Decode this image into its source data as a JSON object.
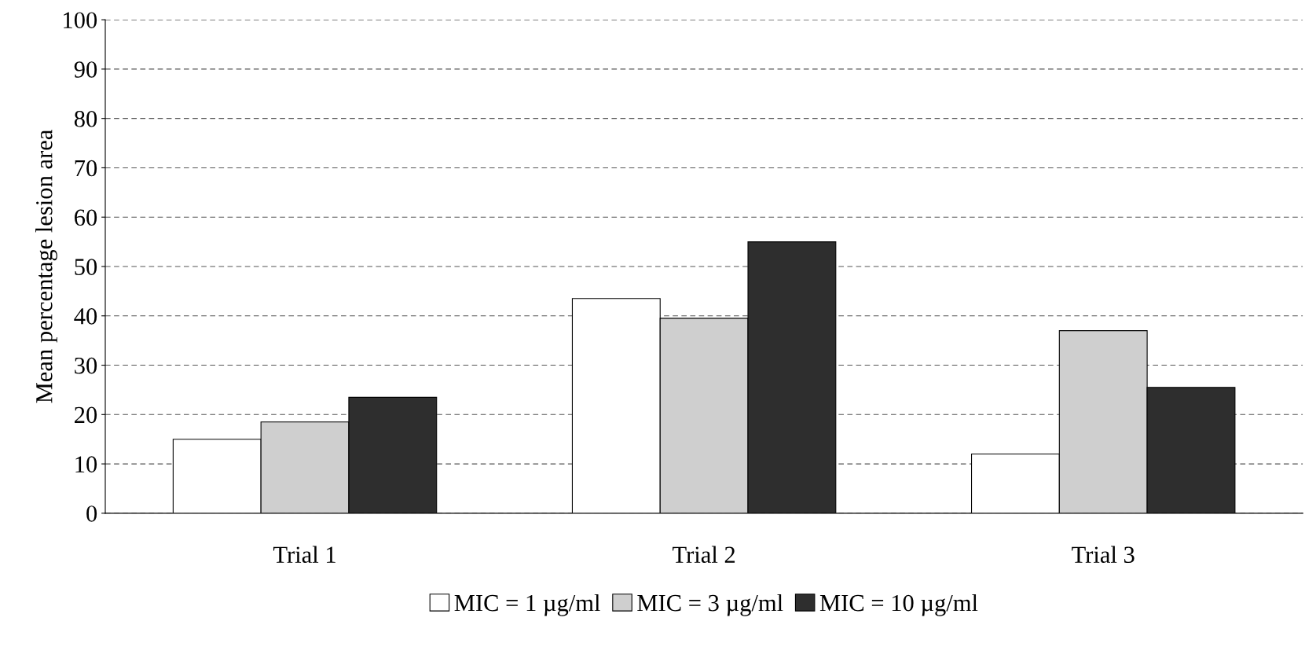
{
  "chart_data": {
    "type": "bar",
    "ylabel": "Mean percentage lesion area",
    "categories": [
      "Trial 1",
      "Trial 2",
      "Trial 3"
    ],
    "series": [
      {
        "name": "MIC = 1 µg/ml",
        "color": "#ffffff",
        "values": [
          15,
          43.5,
          12
        ]
      },
      {
        "name": "MIC = 3 µg/ml",
        "color": "#cfcfcf",
        "values": [
          18.5,
          39.5,
          37
        ]
      },
      {
        "name": "MIC = 10 µg/ml",
        "color": "#2e2e2e",
        "values": [
          23.5,
          55,
          25.5
        ]
      }
    ],
    "ylim": [
      0,
      100
    ],
    "yticks": [
      0,
      10,
      20,
      30,
      40,
      50,
      60,
      70,
      80,
      90,
      100
    ],
    "grid": "y",
    "legend": "bottom"
  }
}
